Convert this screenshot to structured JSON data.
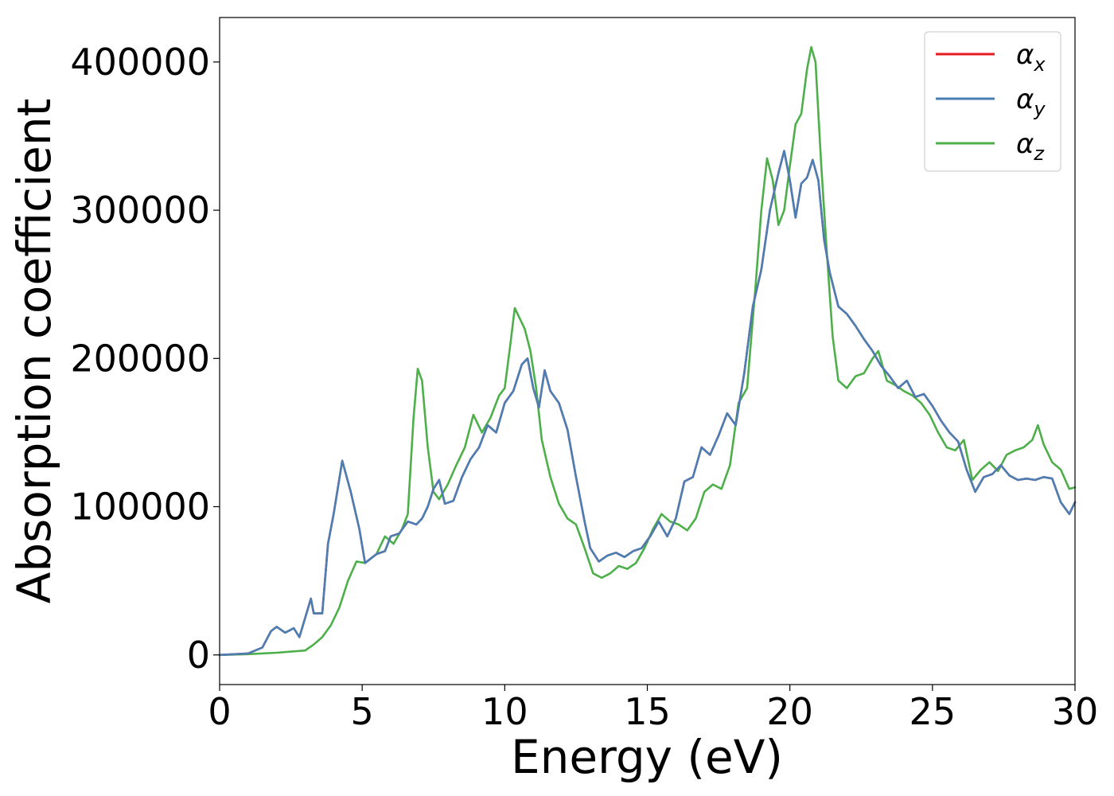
{
  "chart_data": {
    "type": "line",
    "xlabel": "Energy (eV)",
    "ylabel": "Absorption coefficient",
    "xlim": [
      0,
      30
    ],
    "ylim": [
      -20000,
      430000
    ],
    "xticks": [
      0,
      5,
      10,
      15,
      20,
      25,
      30
    ],
    "xtick_labels": [
      "0",
      "5",
      "10",
      "15",
      "20",
      "25",
      "30"
    ],
    "yticks": [
      0,
      100000,
      200000,
      300000,
      400000
    ],
    "ytick_labels": [
      "0",
      "100000",
      "200000",
      "300000",
      "400000"
    ],
    "grid": false,
    "legend": "top-right",
    "series": [
      {
        "name": "αx",
        "base": "α",
        "sub": "x",
        "color": "#e41a1c",
        "x": [
          0,
          1,
          1.5,
          1.8,
          2.0,
          2.3,
          2.6,
          2.8,
          3.0,
          3.2,
          3.3,
          3.6,
          3.8,
          4.0,
          4.3,
          4.6,
          4.9,
          5.1,
          5.5,
          5.8,
          6.0,
          6.3,
          6.6,
          6.9,
          7.1,
          7.3,
          7.5,
          7.7,
          7.9,
          8.2,
          8.5,
          8.8,
          9.1,
          9.4,
          9.7,
          10.0,
          10.3,
          10.6,
          10.8,
          11.0,
          11.2,
          11.4,
          11.6,
          11.9,
          12.2,
          12.5,
          12.8,
          13.0,
          13.3,
          13.6,
          13.9,
          14.2,
          14.5,
          14.8,
          15.1,
          15.4,
          15.7,
          16.0,
          16.3,
          16.6,
          16.9,
          17.2,
          17.5,
          17.8,
          18.1,
          18.4,
          18.7,
          19.0,
          19.3,
          19.6,
          19.8,
          20.0,
          20.2,
          20.4,
          20.6,
          20.8,
          21.0,
          21.2,
          21.4,
          21.7,
          22.0,
          22.3,
          22.6,
          22.9,
          23.2,
          23.5,
          23.8,
          24.1,
          24.4,
          24.7,
          25.0,
          25.3,
          25.6,
          25.9,
          26.2,
          26.5,
          26.8,
          27.1,
          27.4,
          27.7,
          28.0,
          28.3,
          28.6,
          28.9,
          29.2,
          29.5,
          29.8,
          30
        ],
        "y": [
          0,
          1000,
          5000,
          16000,
          19000,
          15000,
          18000,
          12000,
          25000,
          38000,
          28000,
          28000,
          75000,
          95000,
          131000,
          110000,
          85000,
          62000,
          68000,
          70000,
          80000,
          82000,
          90000,
          88000,
          92000,
          100000,
          112000,
          118000,
          102000,
          104000,
          120000,
          132000,
          140000,
          155000,
          150000,
          170000,
          178000,
          196000,
          200000,
          180000,
          167000,
          192000,
          178000,
          170000,
          152000,
          120000,
          90000,
          72000,
          63000,
          67000,
          69000,
          66000,
          70000,
          72000,
          80000,
          90000,
          80000,
          92000,
          117000,
          120000,
          140000,
          135000,
          148000,
          163000,
          155000,
          190000,
          235000,
          260000,
          300000,
          325000,
          340000,
          320000,
          295000,
          318000,
          322000,
          334000,
          320000,
          280000,
          258000,
          235000,
          230000,
          222000,
          213000,
          205000,
          195000,
          188000,
          180000,
          185000,
          174000,
          176000,
          168000,
          158000,
          150000,
          144000,
          125000,
          110000,
          120000,
          122000,
          128000,
          121000,
          118000,
          119000,
          118000,
          120000,
          119000,
          103000,
          95000,
          103000
        ]
      },
      {
        "name": "αy",
        "base": "α",
        "sub": "y",
        "color": "#4a7fb5",
        "x": [
          0,
          1,
          1.5,
          1.8,
          2.0,
          2.3,
          2.6,
          2.8,
          3.0,
          3.2,
          3.3,
          3.6,
          3.8,
          4.0,
          4.3,
          4.6,
          4.9,
          5.1,
          5.5,
          5.8,
          6.0,
          6.3,
          6.6,
          6.9,
          7.1,
          7.3,
          7.5,
          7.7,
          7.9,
          8.2,
          8.5,
          8.8,
          9.1,
          9.4,
          9.7,
          10.0,
          10.3,
          10.6,
          10.8,
          11.0,
          11.2,
          11.4,
          11.6,
          11.9,
          12.2,
          12.5,
          12.8,
          13.0,
          13.3,
          13.6,
          13.9,
          14.2,
          14.5,
          14.8,
          15.1,
          15.4,
          15.7,
          16.0,
          16.3,
          16.6,
          16.9,
          17.2,
          17.5,
          17.8,
          18.1,
          18.4,
          18.7,
          19.0,
          19.3,
          19.6,
          19.8,
          20.0,
          20.2,
          20.4,
          20.6,
          20.8,
          21.0,
          21.2,
          21.4,
          21.7,
          22.0,
          22.3,
          22.6,
          22.9,
          23.2,
          23.5,
          23.8,
          24.1,
          24.4,
          24.7,
          25.0,
          25.3,
          25.6,
          25.9,
          26.2,
          26.5,
          26.8,
          27.1,
          27.4,
          27.7,
          28.0,
          28.3,
          28.6,
          28.9,
          29.2,
          29.5,
          29.8,
          30
        ],
        "y": [
          0,
          1000,
          5000,
          16000,
          19000,
          15000,
          18000,
          12000,
          25000,
          38000,
          28000,
          28000,
          75000,
          95000,
          131000,
          110000,
          85000,
          62000,
          68000,
          70000,
          80000,
          82000,
          90000,
          88000,
          92000,
          100000,
          112000,
          118000,
          102000,
          104000,
          120000,
          132000,
          140000,
          155000,
          150000,
          170000,
          178000,
          196000,
          200000,
          180000,
          167000,
          192000,
          178000,
          170000,
          152000,
          120000,
          90000,
          72000,
          63000,
          67000,
          69000,
          66000,
          70000,
          72000,
          80000,
          90000,
          80000,
          92000,
          117000,
          120000,
          140000,
          135000,
          148000,
          163000,
          155000,
          190000,
          235000,
          260000,
          300000,
          325000,
          340000,
          320000,
          295000,
          318000,
          322000,
          334000,
          320000,
          280000,
          258000,
          235000,
          230000,
          222000,
          213000,
          205000,
          195000,
          188000,
          180000,
          185000,
          174000,
          176000,
          168000,
          158000,
          150000,
          144000,
          125000,
          110000,
          120000,
          122000,
          128000,
          121000,
          118000,
          119000,
          118000,
          120000,
          119000,
          103000,
          95000,
          103000
        ]
      },
      {
        "name": "αz",
        "base": "α",
        "sub": "z",
        "color": "#4daf4a",
        "x": [
          0,
          1,
          2,
          3,
          3.3,
          3.6,
          3.9,
          4.2,
          4.5,
          4.8,
          5.1,
          5.5,
          5.8,
          6.1,
          6.4,
          6.6,
          6.8,
          6.95,
          7.1,
          7.3,
          7.5,
          7.7,
          8.0,
          8.3,
          8.6,
          8.9,
          9.2,
          9.5,
          9.8,
          10.0,
          10.2,
          10.35,
          10.5,
          10.7,
          10.9,
          11.1,
          11.3,
          11.6,
          11.9,
          12.2,
          12.5,
          12.8,
          13.1,
          13.4,
          13.7,
          14.0,
          14.3,
          14.6,
          14.9,
          15.2,
          15.5,
          15.8,
          16.1,
          16.4,
          16.7,
          17.0,
          17.3,
          17.6,
          17.9,
          18.2,
          18.5,
          18.8,
          19.0,
          19.2,
          19.4,
          19.6,
          19.8,
          20.0,
          20.2,
          20.4,
          20.6,
          20.75,
          20.9,
          21.1,
          21.3,
          21.5,
          21.7,
          22.0,
          22.3,
          22.6,
          22.9,
          23.1,
          23.4,
          23.7,
          24.0,
          24.3,
          24.6,
          24.9,
          25.2,
          25.5,
          25.8,
          26.1,
          26.4,
          26.7,
          27.0,
          27.3,
          27.6,
          27.9,
          28.2,
          28.5,
          28.7,
          28.9,
          29.2,
          29.5,
          29.8,
          30
        ],
        "y": [
          0,
          500,
          1500,
          3000,
          7000,
          12000,
          20000,
          32000,
          50000,
          63000,
          62000,
          68000,
          80000,
          75000,
          85000,
          95000,
          160000,
          193000,
          185000,
          140000,
          110000,
          105000,
          115000,
          128000,
          140000,
          162000,
          150000,
          160000,
          175000,
          180000,
          210000,
          234000,
          228000,
          220000,
          205000,
          180000,
          145000,
          120000,
          102000,
          92000,
          88000,
          72000,
          55000,
          52000,
          55000,
          60000,
          58000,
          62000,
          72000,
          85000,
          95000,
          90000,
          88000,
          84000,
          92000,
          110000,
          115000,
          112000,
          128000,
          170000,
          180000,
          250000,
          300000,
          335000,
          320000,
          290000,
          300000,
          330000,
          358000,
          365000,
          395000,
          410000,
          400000,
          330000,
          270000,
          215000,
          185000,
          180000,
          188000,
          190000,
          200000,
          205000,
          185000,
          182000,
          178000,
          175000,
          170000,
          162000,
          150000,
          140000,
          138000,
          145000,
          118000,
          125000,
          130000,
          124000,
          135000,
          138000,
          140000,
          145000,
          155000,
          142000,
          130000,
          125000,
          112000,
          113000
        ]
      }
    ]
  }
}
